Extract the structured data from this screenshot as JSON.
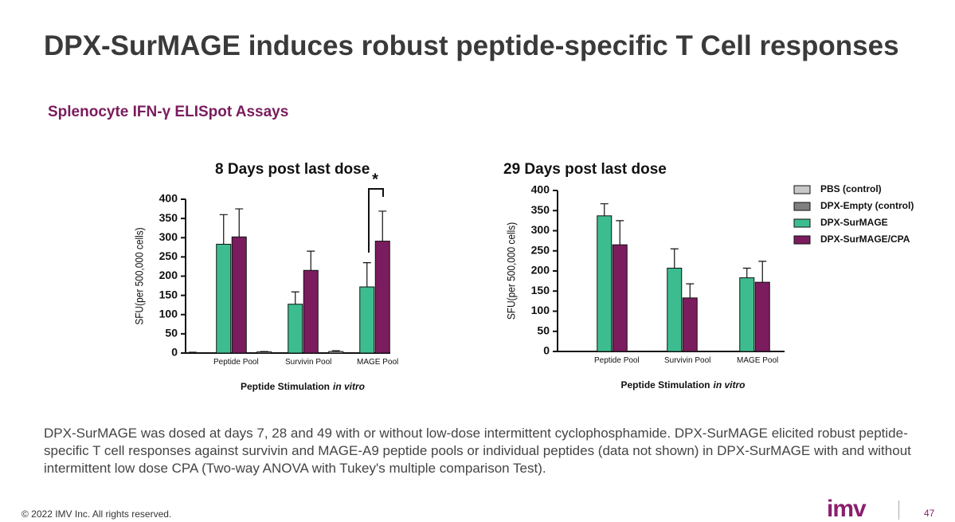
{
  "slide": {
    "title": "DPX-SurMAGE induces robust peptide-specific T Cell responses",
    "subtitle": "Splenocyte IFN-γ ELISpot Assays",
    "caption": "DPX-SurMAGE was dosed at days 7, 28 and 49 with or without low-dose intermittent cyclophosphamide. DPX-SurMAGE elicited robust peptide-specific T cell responses against survivin and MAGE-A9 peptide pools or individual peptides (data not shown) in DPX-SurMAGE with and without intermittent low dose CPA (Two-way ANOVA with Tukey's multiple comparison Test).",
    "copyright": "© 2022 IMV Inc. All rights reserved.",
    "logo": "imv",
    "page_number": "47"
  },
  "chart_data": [
    {
      "type": "bar",
      "title": "8 Days post last dose",
      "ylabel": "SFU(per 500,000 cells)",
      "xlabel": [
        "Peptide Stimulation",
        "in vitro"
      ],
      "categories": [
        "Peptide Pool",
        "Survivin Pool",
        "MAGE Pool"
      ],
      "series": [
        {
          "color": "#c8c8c8",
          "values": [
            1,
            3,
            4
          ],
          "errors": [
            1,
            1,
            2
          ]
        },
        {
          "color": "#7f7f7f",
          "values": [
            0,
            0,
            0
          ],
          "errors": [
            0,
            0,
            0
          ]
        },
        {
          "color": "#3dbd8f",
          "values": [
            283,
            127,
            172
          ],
          "errors": [
            77,
            32,
            63
          ]
        },
        {
          "color": "#7a1c5e",
          "values": [
            302,
            215,
            291
          ],
          "errors": [
            73,
            50,
            78
          ]
        }
      ],
      "annotation": "*",
      "ylim": [
        0,
        400
      ],
      "yticks": [
        0,
        50,
        100,
        150,
        200,
        250,
        300,
        350,
        400
      ]
    },
    {
      "type": "bar",
      "title": "29 Days post last dose",
      "ylabel": "SFU(per 500,000 cells)",
      "xlabel": [
        "Peptide Stimulation",
        "in vitro"
      ],
      "categories": [
        "Peptide Pool",
        "Survivin Pool",
        "MAGE Pool"
      ],
      "series": [
        {
          "name": "PBS (control)",
          "color": "#c8c8c8",
          "values": [
            0,
            0,
            0
          ],
          "errors": [
            0,
            0,
            0
          ]
        },
        {
          "name": "DPX-Empty (control)",
          "color": "#7f7f7f",
          "values": [
            0,
            1,
            0
          ],
          "errors": [
            0,
            0,
            0
          ]
        },
        {
          "name": "DPX-SurMAGE",
          "color": "#3dbd8f",
          "values": [
            337,
            207,
            183
          ],
          "errors": [
            30,
            48,
            24
          ]
        },
        {
          "name": "DPX-SurMAGE/CPA",
          "color": "#7a1c5e",
          "values": [
            265,
            133,
            172
          ],
          "errors": [
            60,
            35,
            52
          ]
        }
      ],
      "ylim": [
        0,
        400
      ],
      "yticks": [
        0,
        50,
        100,
        150,
        200,
        250,
        300,
        350,
        400
      ]
    }
  ]
}
